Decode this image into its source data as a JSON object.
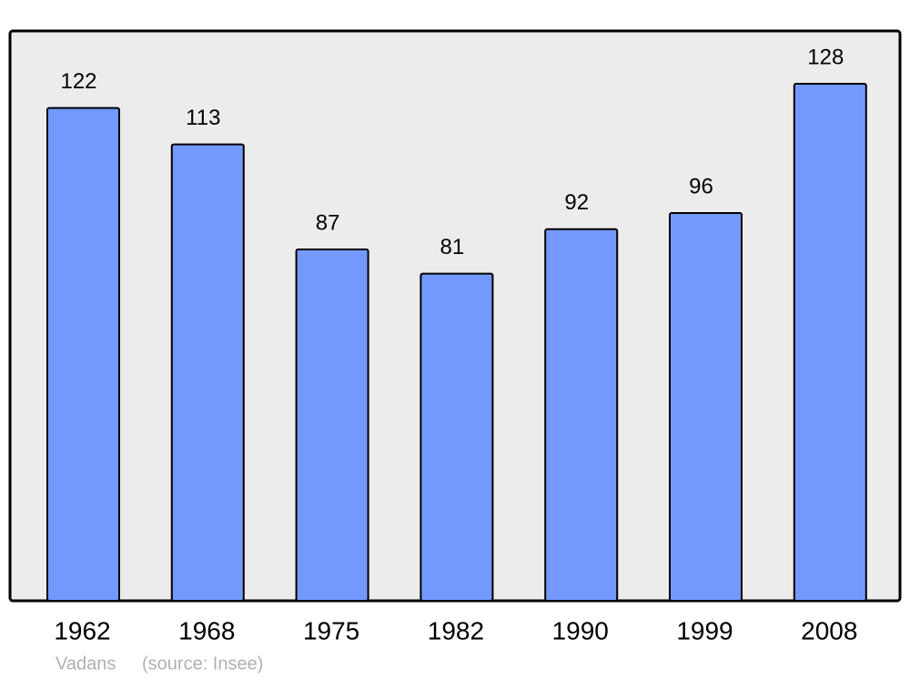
{
  "chart_data": {
    "type": "bar",
    "categories": [
      "1962",
      "1968",
      "1975",
      "1982",
      "1990",
      "1999",
      "2008"
    ],
    "values": [
      122,
      113,
      87,
      81,
      92,
      96,
      128
    ],
    "color": "#7399ff",
    "caption": "Vadans",
    "source": "(source: Insee)"
  }
}
